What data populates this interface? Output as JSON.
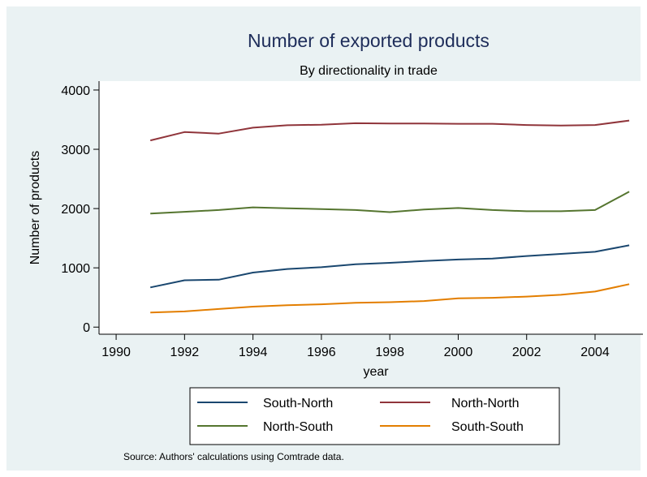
{
  "chart_data": {
    "type": "line",
    "title": "Number of exported products",
    "subtitle": "By directionality in trade",
    "xlabel": "year",
    "ylabel": "Number of products",
    "xlim": [
      1989.5,
      2005.4
    ],
    "ylim": [
      -120,
      4150
    ],
    "xticks": [
      1990,
      1992,
      1994,
      1996,
      1998,
      2000,
      2002,
      2004
    ],
    "yticks": [
      0,
      1000,
      2000,
      3000,
      4000
    ],
    "grid": false,
    "legend_position": "bottom",
    "x": [
      1991,
      1992,
      1993,
      1994,
      1995,
      1996,
      1997,
      1998,
      1999,
      2000,
      2001,
      2002,
      2003,
      2004,
      2005
    ],
    "series": [
      {
        "name": "South-North",
        "color": "#1a476f",
        "values": [
          670,
          790,
          800,
          920,
          980,
          1010,
          1060,
          1085,
          1115,
          1140,
          1155,
          1200,
          1235,
          1270,
          1380
        ]
      },
      {
        "name": "North-North",
        "color": "#90353b",
        "values": [
          3150,
          3290,
          3265,
          3365,
          3405,
          3415,
          3440,
          3435,
          3435,
          3430,
          3430,
          3410,
          3400,
          3410,
          3485
        ]
      },
      {
        "name": "North-South",
        "color": "#55752f",
        "values": [
          1915,
          1945,
          1975,
          2020,
          2005,
          1990,
          1975,
          1940,
          1985,
          2010,
          1975,
          1955,
          1955,
          1975,
          2285
        ]
      },
      {
        "name": "South-South",
        "color": "#e37e00",
        "values": [
          245,
          265,
          305,
          345,
          370,
          385,
          410,
          420,
          440,
          485,
          495,
          515,
          545,
          600,
          725
        ]
      }
    ],
    "note": "Source: Authors' calculations using Comtrade data."
  }
}
